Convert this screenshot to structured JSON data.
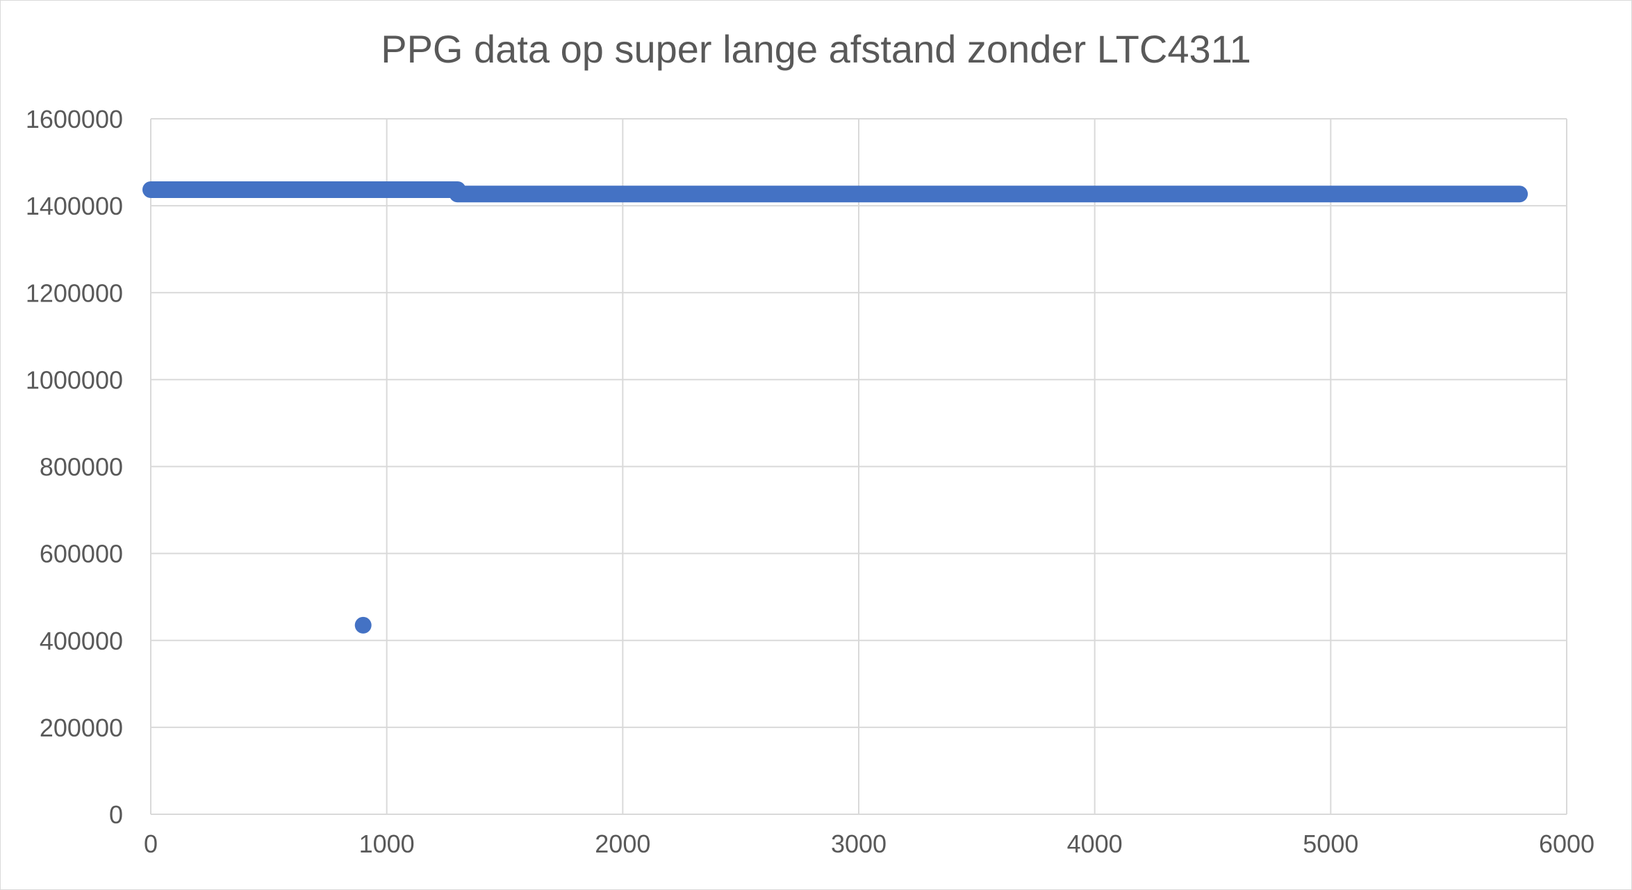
{
  "chart_data": {
    "type": "scatter",
    "title": "PPG data op super lange afstand zonder LTC4311",
    "xlabel": "",
    "ylabel": "",
    "xlim": [
      0,
      6000
    ],
    "ylim": [
      0,
      1600000
    ],
    "x_ticks": [
      0,
      1000,
      2000,
      3000,
      4000,
      5000,
      6000
    ],
    "y_ticks": [
      0,
      200000,
      400000,
      600000,
      800000,
      1000000,
      1200000,
      1400000,
      1600000
    ],
    "x_tick_labels": [
      "0",
      "1000",
      "2000",
      "3000",
      "4000",
      "5000",
      "6000"
    ],
    "y_tick_labels": [
      "0",
      "200000",
      "400000",
      "600000",
      "800000",
      "1000000",
      "1200000",
      "1400000",
      "1600000"
    ],
    "grid": true,
    "legend": "none",
    "series": [
      {
        "color": "#4472c4",
        "segments": [
          {
            "x_start": 0,
            "x_end": 1300,
            "y": 1437000
          },
          {
            "x_start": 1300,
            "x_end": 5800,
            "y": 1427000
          }
        ],
        "points": [
          {
            "x": 900,
            "y": 435000
          }
        ]
      }
    ],
    "colors": {
      "marker": "#4472c4",
      "grid": "#d9d9d9",
      "text": "#595959"
    }
  }
}
